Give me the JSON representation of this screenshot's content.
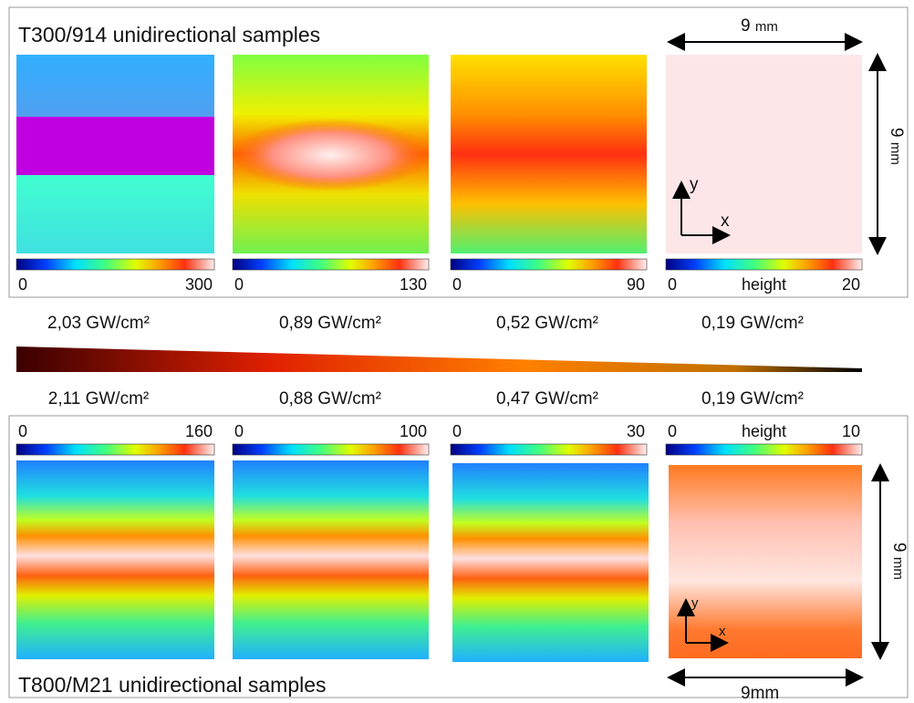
{
  "top_panel": {
    "title": "T300/914 unidirectional samples",
    "scale_x": {
      "value": "9",
      "unit": "mm"
    },
    "scale_y": {
      "value": "9",
      "unit": "mm"
    },
    "axis_labels": {
      "y": "y",
      "x": "x"
    },
    "colorbars": [
      {
        "min": "0",
        "max": "300"
      },
      {
        "min": "0",
        "max": "130"
      },
      {
        "min": "0",
        "max": "90"
      },
      {
        "min": "0",
        "label": "height",
        "max": "20"
      }
    ],
    "fluences": [
      "2,03 GW/cm²",
      "0,89 GW/cm²",
      "0,52 GW/cm²",
      "0,19 GW/cm²"
    ]
  },
  "bottom_panel": {
    "title": "T800/M21 unidirectional samples",
    "scale_x": {
      "value": "9mm"
    },
    "scale_y": {
      "value": "9",
      "unit": "mm"
    },
    "axis_labels": {
      "y": "y",
      "x": "x"
    },
    "colorbars": [
      {
        "min": "0",
        "max": "160"
      },
      {
        "min": "0",
        "max": "100"
      },
      {
        "min": "0",
        "max": "30"
      },
      {
        "min": "0",
        "label": "height",
        "max": "10"
      }
    ],
    "fluences": [
      "2,11 GW/cm²",
      "0,88 GW/cm²",
      "0,47 GW/cm²",
      "0,19 GW/cm²"
    ]
  }
}
